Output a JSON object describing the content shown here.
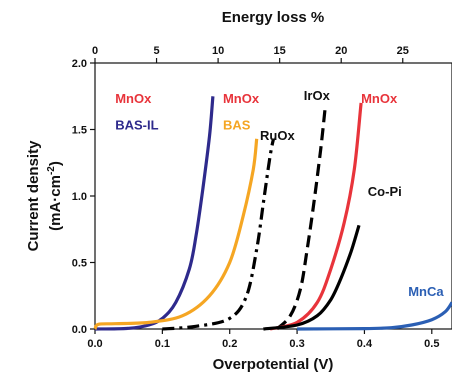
{
  "chart_data": {
    "type": "line",
    "xlabel": "Overpotential (V)",
    "ylabel_line1": "Current density",
    "ylabel_line2": "(mA·cm",
    "ylabel_sup": "-2",
    "ylabel_close": ")",
    "x2label": "Energy loss %",
    "xlim": [
      0,
      0.53
    ],
    "ylim": [
      0,
      2.0
    ],
    "x2lim": [
      0,
      29
    ],
    "x_ticks": [
      "0.0",
      "0.1",
      "0.2",
      "0.3",
      "0.4",
      "0.5"
    ],
    "y_ticks": [
      "0.0",
      "0.5",
      "1.0",
      "1.5",
      "2.0"
    ],
    "x2_ticks": [
      "0",
      "5",
      "10",
      "15",
      "20",
      "25"
    ],
    "grid": false,
    "series": [
      {
        "id": "mnox-bas-il",
        "color": "#2e2a8c",
        "dash": "solid",
        "points": [
          [
            0.0,
            0.0
          ],
          [
            0.05,
            0.005
          ],
          [
            0.08,
            0.03
          ],
          [
            0.1,
            0.08
          ],
          [
            0.12,
            0.2
          ],
          [
            0.14,
            0.45
          ],
          [
            0.15,
            0.7
          ],
          [
            0.16,
            1.05
          ],
          [
            0.17,
            1.45
          ],
          [
            0.175,
            1.75
          ]
        ]
      },
      {
        "id": "mnox-bas",
        "color": "#f5a623",
        "dash": "solid",
        "points": [
          [
            0.0,
            0.0
          ],
          [
            0.005,
            0.035
          ],
          [
            0.03,
            0.04
          ],
          [
            0.08,
            0.05
          ],
          [
            0.13,
            0.1
          ],
          [
            0.17,
            0.25
          ],
          [
            0.2,
            0.5
          ],
          [
            0.22,
            0.85
          ],
          [
            0.235,
            1.2
          ],
          [
            0.24,
            1.43
          ]
        ]
      },
      {
        "id": "ruox",
        "color": "#000000",
        "dash": "dashdot",
        "points": [
          [
            0.1,
            0.0
          ],
          [
            0.15,
            0.02
          ],
          [
            0.2,
            0.08
          ],
          [
            0.225,
            0.25
          ],
          [
            0.24,
            0.6
          ],
          [
            0.25,
            0.95
          ],
          [
            0.26,
            1.3
          ],
          [
            0.265,
            1.43
          ]
        ]
      },
      {
        "id": "irox",
        "color": "#000000",
        "dash": "dash",
        "points": [
          [
            0.27,
            0.0
          ],
          [
            0.29,
            0.1
          ],
          [
            0.305,
            0.3
          ],
          [
            0.315,
            0.6
          ],
          [
            0.325,
            0.95
          ],
          [
            0.335,
            1.35
          ],
          [
            0.342,
            1.68
          ]
        ]
      },
      {
        "id": "mnox",
        "color": "#e8343b",
        "dash": "solid",
        "points": [
          [
            0.26,
            0.0
          ],
          [
            0.3,
            0.05
          ],
          [
            0.33,
            0.2
          ],
          [
            0.35,
            0.45
          ],
          [
            0.37,
            0.8
          ],
          [
            0.385,
            1.2
          ],
          [
            0.395,
            1.7
          ]
        ]
      },
      {
        "id": "copi",
        "color": "#000000",
        "dash": "solid",
        "points": [
          [
            0.25,
            0.0
          ],
          [
            0.3,
            0.03
          ],
          [
            0.33,
            0.1
          ],
          [
            0.35,
            0.22
          ],
          [
            0.365,
            0.38
          ],
          [
            0.38,
            0.58
          ],
          [
            0.392,
            0.78
          ]
        ]
      },
      {
        "id": "mnca",
        "color": "#2b5fb4",
        "dash": "solid",
        "points": [
          [
            0.3,
            0.0
          ],
          [
            0.4,
            0.003
          ],
          [
            0.44,
            0.01
          ],
          [
            0.47,
            0.03
          ],
          [
            0.5,
            0.07
          ],
          [
            0.52,
            0.13
          ],
          [
            0.53,
            0.2
          ]
        ]
      }
    ],
    "labels": [
      {
        "text": "MnOx",
        "color": "#e8343b",
        "x": 0.03,
        "y": 1.7,
        "size": 13
      },
      {
        "text": "BAS-IL",
        "color": "#2e2a8c",
        "x": 0.03,
        "y": 1.5,
        "size": 13
      },
      {
        "text": "MnOx",
        "color": "#e8343b",
        "x": 0.19,
        "y": 1.7,
        "size": 13
      },
      {
        "text": "BAS",
        "color": "#f5a623",
        "x": 0.19,
        "y": 1.5,
        "size": 13
      },
      {
        "text": "RuOx",
        "color": "#111111",
        "x": 0.245,
        "y": 1.42,
        "size": 12
      },
      {
        "text": "IrOx",
        "color": "#111111",
        "x": 0.31,
        "y": 1.72,
        "size": 13
      },
      {
        "text": "MnOx",
        "color": "#e8343b",
        "x": 0.395,
        "y": 1.7,
        "size": 14
      },
      {
        "text": "Co-Pi",
        "color": "#111111",
        "x": 0.405,
        "y": 1.0,
        "size": 13
      },
      {
        "text": "MnCa",
        "color": "#2b5fb4",
        "x": 0.465,
        "y": 0.25,
        "size": 14
      }
    ]
  }
}
